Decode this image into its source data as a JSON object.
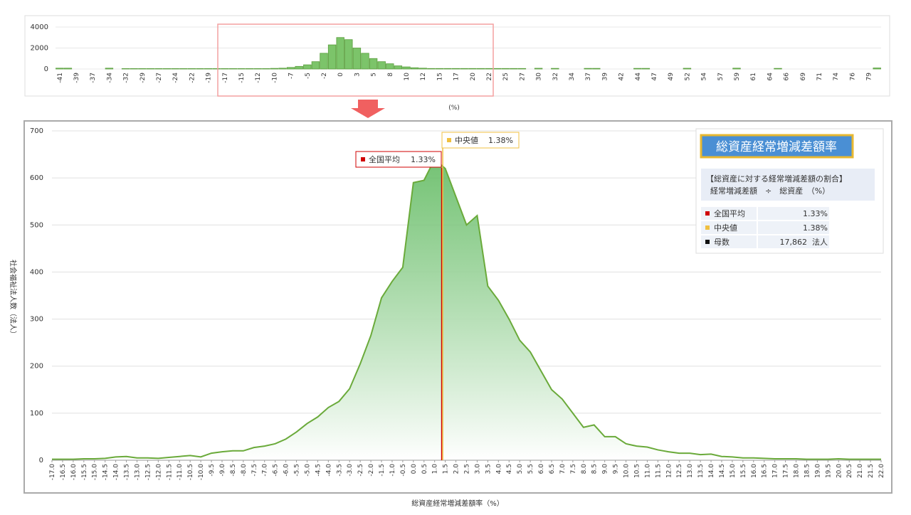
{
  "chart_data": [
    {
      "type": "bar",
      "x_label": "(%)",
      "color": "#7cc46a",
      "stroke": "#5a9e3c",
      "categories": [
        "-41",
        null,
        "-39",
        null,
        "-37",
        null,
        "-34",
        null,
        "-32",
        null,
        "-29",
        null,
        "-27",
        null,
        "-24",
        null,
        "-22",
        null,
        "-19",
        null,
        "-17",
        null,
        "-15",
        null,
        "-12",
        null,
        "-10",
        null,
        "-7",
        null,
        "-5",
        null,
        "-2",
        null,
        "0",
        null,
        "3",
        null,
        "5",
        null,
        "8",
        null,
        "10",
        null,
        "12",
        null,
        "15",
        null,
        "17",
        null,
        "20",
        null,
        "22",
        null,
        "25",
        null,
        "27",
        null,
        "30",
        null,
        "32",
        null,
        "34",
        null,
        "37",
        null,
        "39",
        null,
        "42",
        null,
        "44",
        null,
        "47",
        null,
        "49",
        null,
        "52",
        null,
        "54",
        null,
        "57",
        null,
        "59",
        null,
        "61",
        null,
        "64",
        null,
        "66",
        null,
        "69",
        null,
        "71",
        null,
        "74",
        null,
        "76",
        null,
        "79",
        null
      ],
      "values": [
        80,
        80,
        0,
        0,
        0,
        0,
        80,
        0,
        40,
        40,
        40,
        40,
        40,
        40,
        40,
        40,
        40,
        40,
        40,
        40,
        40,
        40,
        40,
        40,
        40,
        40,
        60,
        80,
        150,
        250,
        400,
        700,
        1500,
        2300,
        3000,
        2800,
        2000,
        1500,
        1000,
        700,
        500,
        300,
        200,
        120,
        80,
        50,
        50,
        50,
        50,
        50,
        50,
        50,
        50,
        50,
        50,
        50,
        50,
        0,
        70,
        0,
        60,
        0,
        0,
        0,
        60,
        60,
        0,
        0,
        0,
        0,
        60,
        60,
        0,
        0,
        0,
        0,
        70,
        0,
        0,
        0,
        0,
        0,
        80,
        0,
        0,
        0,
        0,
        60,
        0,
        0,
        0,
        0,
        0,
        0,
        0,
        0,
        0,
        0,
        0,
        100
      ],
      "ylim": [
        0,
        4000
      ],
      "yticks": [
        0,
        2000,
        4000
      ],
      "grid": true
    },
    {
      "type": "area",
      "x_label": "総資産経常増減差額率（%）",
      "y_label": "社会福祉法人数（法人）",
      "color": "#6aaa3a",
      "x": [
        -17,
        -16.5,
        -16,
        -15.5,
        -15,
        -14.5,
        -14,
        -13.5,
        -13,
        -12.5,
        -12,
        -11.5,
        -11,
        -10.5,
        -10,
        -9.5,
        -9,
        -8.5,
        -8,
        -7.5,
        -7,
        -6.5,
        -6,
        -5.5,
        -5,
        -4.5,
        -4,
        -3.5,
        -3,
        -2.5,
        -2,
        -1.5,
        -1,
        -0.5,
        0,
        0.5,
        1,
        1.5,
        2,
        2.5,
        3,
        3.5,
        4,
        4.5,
        5,
        5.5,
        6,
        6.5,
        7,
        7.5,
        8,
        8.5,
        9,
        9.5,
        10,
        10.5,
        11,
        11.5,
        12,
        12.5,
        13,
        13.5,
        14,
        14.5,
        15,
        15.5,
        16,
        16.5,
        17,
        17.5,
        18,
        18.5,
        19,
        19.5,
        20,
        20.5,
        21,
        21.5,
        22
      ],
      "values": [
        2,
        2,
        2,
        3,
        3,
        4,
        7,
        8,
        5,
        5,
        4,
        6,
        8,
        10,
        7,
        15,
        18,
        20,
        20,
        27,
        30,
        35,
        45,
        60,
        78,
        92,
        112,
        125,
        152,
        205,
        265,
        345,
        380,
        410,
        590,
        595,
        640,
        620,
        560,
        500,
        520,
        370,
        340,
        300,
        255,
        230,
        190,
        150,
        130,
        100,
        70,
        75,
        50,
        50,
        35,
        30,
        28,
        22,
        18,
        15,
        15,
        12,
        13,
        8,
        7,
        5,
        5,
        4,
        3,
        3,
        3,
        2,
        2,
        2,
        3,
        2,
        2,
        2,
        2
      ],
      "xlim": [
        -17,
        22
      ],
      "xticks": [
        {
          "value": -17,
          "label": "-17.0"
        },
        -16.5,
        {
          "value": -16,
          "label": "-16.0"
        },
        -15.5,
        {
          "value": -15,
          "label": "-15.0"
        },
        -14.5,
        {
          "value": -14,
          "label": "-14.0"
        },
        -13.5,
        {
          "value": -13,
          "label": "-13.0"
        },
        -12.5,
        {
          "value": -12,
          "label": "-12.0"
        },
        -11.5,
        {
          "value": -11,
          "label": "-11.0"
        },
        -10.5,
        {
          "value": -10,
          "label": "-10.0"
        },
        -9.5,
        {
          "value": -9,
          "label": "-9.0"
        },
        -8.5,
        {
          "value": -8,
          "label": "-8.0"
        },
        -7.5,
        {
          "value": -7,
          "label": "-7.0"
        },
        -6.5,
        {
          "value": -6,
          "label": "-6.0"
        },
        -5.5,
        {
          "value": -5,
          "label": "-5.0"
        },
        -4.5,
        {
          "value": -4,
          "label": "-4.0"
        },
        -3.5,
        {
          "value": -3,
          "label": "-3.0"
        },
        -2.5,
        {
          "value": -2,
          "label": "-2.0"
        },
        -1.5,
        {
          "value": -1,
          "label": "-1.0"
        },
        -0.5,
        {
          "value": 0,
          "label": "0.0"
        },
        0.5,
        {
          "value": 1,
          "label": "1.0"
        },
        1.5,
        {
          "value": 2,
          "label": "2.0"
        },
        2.5,
        {
          "value": 3,
          "label": "3.0"
        },
        3.5,
        {
          "value": 4,
          "label": "4.0"
        },
        4.5,
        {
          "value": 5,
          "label": "5.0"
        },
        5.5,
        {
          "value": 6,
          "label": "6.0"
        },
        6.5,
        {
          "value": 7,
          "label": "7.0"
        },
        7.5,
        {
          "value": 8,
          "label": "8.0"
        },
        8.5,
        {
          "value": 9,
          "label": "9.0"
        },
        9.5,
        {
          "value": 10,
          "label": "10.0"
        },
        10.5,
        {
          "value": 11,
          "label": "11.0"
        },
        11.5,
        {
          "value": 12,
          "label": "12.0"
        },
        12.5,
        {
          "value": 13,
          "label": "13.0"
        },
        13.5,
        {
          "value": 14,
          "label": "14.0"
        },
        14.5,
        {
          "value": 15,
          "label": "15.0"
        },
        15.5,
        {
          "value": 16,
          "label": "16.0"
        },
        16.5,
        {
          "value": 17,
          "label": "17.0"
        },
        17.5,
        {
          "value": 18,
          "label": "18.0"
        },
        18.5,
        {
          "value": 19,
          "label": "19.0"
        },
        19.5,
        {
          "value": 20,
          "label": "20.0"
        },
        20.5,
        {
          "value": 21,
          "label": "21.0"
        },
        21.5,
        {
          "value": 22,
          "label": "22.0"
        }
      ],
      "ylim": [
        0,
        700
      ],
      "yticks": [
        0,
        100,
        200,
        300,
        400,
        500,
        600,
        700
      ],
      "grid": true,
      "annotations": [
        {
          "label": "全国平均",
          "value": 1.33,
          "value_label": "1.33%",
          "color": "#d00000"
        },
        {
          "label": "中央値",
          "value": 1.38,
          "value_label": "1.38%",
          "color": "#f0c040"
        }
      ],
      "info": {
        "title": "総資産経常増減差額率",
        "formula": [
          "【総資産に対する経常増減差額の割合】",
          "経常増減差額　÷　総資産　（%）"
        ],
        "rows": [
          {
            "label": "全国平均",
            "value": "1.33%",
            "color": "#d00000"
          },
          {
            "label": "中央値",
            "value": "1.38%",
            "color": "#f0c040"
          },
          {
            "label": "母数",
            "value": "17,862  法人",
            "color": "#111111"
          }
        ]
      }
    }
  ]
}
